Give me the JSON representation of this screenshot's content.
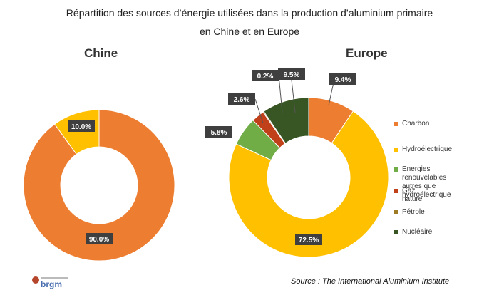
{
  "figure": {
    "title_line1": "Répartition des sources d’énergie utilisées dans la production d’aluminium primaire",
    "title_line2": "en Chine et en Europe",
    "source": "Source : The International Aluminium Institute",
    "logo_text": "brgm"
  },
  "colors": {
    "charbon": "#ED7D31",
    "hydro": "#FFC000",
    "renouvelables": "#70AD47",
    "gaz": "#C0401A",
    "petrole": "#9E7B27",
    "nucleaire": "#375623",
    "label_box": "#3f3f3f"
  },
  "legend": [
    {
      "label": "Charbon",
      "color_key": "charbon"
    },
    {
      "label": "Hydroélectrique",
      "color_key": "hydro"
    },
    {
      "label": "Energies renouvelables\nautres que hydroélectrique",
      "color_key": "renouvelables"
    },
    {
      "label": "Gaz naturel",
      "color_key": "gaz"
    },
    {
      "label": "Pétrole",
      "color_key": "petrole"
    },
    {
      "label": "Nucléaire",
      "color_key": "nucleaire"
    }
  ],
  "chart_data": [
    {
      "type": "pie",
      "title": "Chine",
      "categories": [
        "Charbon",
        "Hydroélectrique"
      ],
      "values": [
        90.0,
        10.0
      ],
      "labels": [
        "90.0%",
        "10.0%"
      ]
    },
    {
      "type": "pie",
      "title": "Europe",
      "categories": [
        "Charbon",
        "Hydroélectrique",
        "Energies renouvelables autres que hydroélectrique",
        "Gaz naturel",
        "Pétrole",
        "Nucléaire"
      ],
      "values": [
        9.4,
        72.5,
        5.8,
        2.6,
        0.2,
        9.5
      ],
      "labels": [
        "9.4%",
        "72.5%",
        "5.8%",
        "2.6%",
        "0.2%",
        "9.5%"
      ]
    }
  ]
}
